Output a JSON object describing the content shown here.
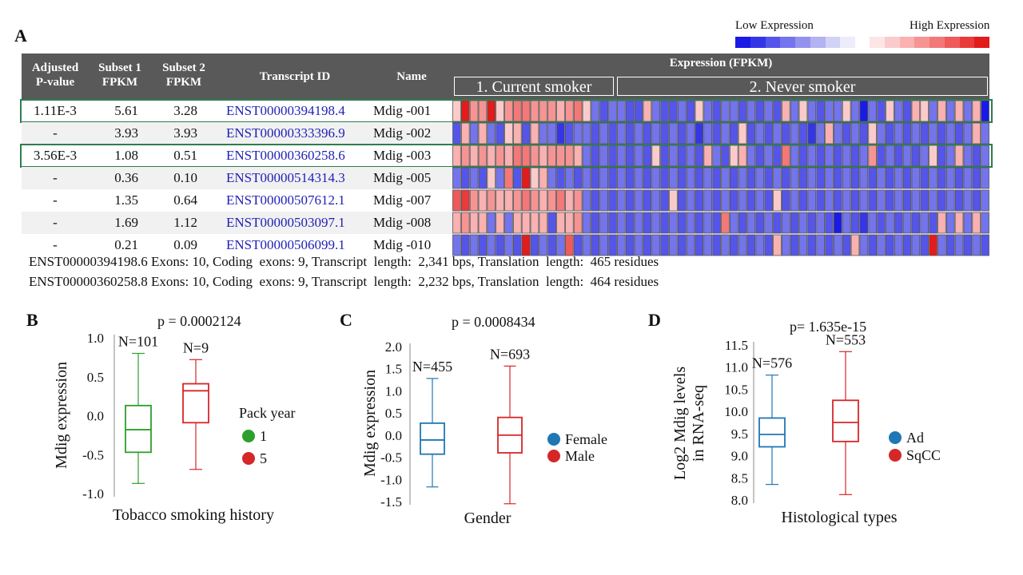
{
  "panel_labels": {
    "a": "A",
    "b": "B",
    "c": "C",
    "d": "D"
  },
  "legend": {
    "low_label": "Low Expression",
    "high_label": "High Expression",
    "low_colors": [
      "#1a1ae6",
      "#3535e8",
      "#5555ea",
      "#7474ec",
      "#9393ef",
      "#b3b3f2",
      "#d2d2f6",
      "#ececfb"
    ],
    "high_colors": [
      "#fde5e5",
      "#fbcbcb",
      "#f9b1b1",
      "#f69494",
      "#f37878",
      "#ef5a5a",
      "#ea3a3a",
      "#e21b1b"
    ]
  },
  "table": {
    "headers": {
      "pval": [
        "Adjusted",
        "P-value"
      ],
      "subset1": [
        "Subset 1",
        "FPKM"
      ],
      "subset2": [
        "Subset 2",
        "FPKM"
      ],
      "transcript": "Transcript ID",
      "name": "Name",
      "expression": "Expression (FPKM)",
      "group1": "1. Current smoker",
      "group2": "2. Never smoker"
    },
    "rows": [
      {
        "pval": "1.11E-3",
        "s1": "5.61",
        "s2": "3.28",
        "tid": "ENST00000394198.4",
        "name": "Mdig -001",
        "highlight": true,
        "heat": [
          1,
          7,
          3,
          3,
          7,
          1,
          3,
          4,
          4,
          3,
          3,
          3,
          2,
          3,
          4,
          1,
          -1,
          -2,
          -1,
          -1,
          -2,
          -2,
          2,
          -1,
          -2,
          -2,
          -1,
          -2,
          1,
          -1,
          -2,
          -1,
          -1,
          -2,
          -1,
          -2,
          -1,
          -2,
          2,
          -1,
          1,
          -1,
          -2,
          -1,
          -1,
          1,
          -1,
          -5,
          -1,
          -2,
          1,
          -1,
          -2,
          2,
          1,
          -1,
          2,
          -1,
          2,
          -1,
          2,
          -5
        ]
      },
      {
        "pval": "-",
        "s1": "3.93",
        "s2": "3.93",
        "tid": "ENST00000333396.9",
        "name": "Mdig -002",
        "highlight": false,
        "heat": [
          -2,
          2,
          -1,
          2,
          -1,
          -2,
          1,
          2,
          -2,
          2,
          -1,
          -1,
          -3,
          -2,
          -1,
          -1,
          -2,
          -1,
          -2,
          -1,
          -2,
          -1,
          -2,
          -1,
          -2,
          -1,
          -2,
          -1,
          -3,
          -1,
          -2,
          -1,
          -2,
          1,
          -2,
          -1,
          -2,
          -1,
          -2,
          -1,
          -2,
          -3,
          -1,
          2,
          -1,
          -2,
          -1,
          -2,
          1,
          -1,
          -2,
          -1,
          -2,
          -1,
          -2,
          -1,
          -2,
          -1,
          -2,
          -1,
          2,
          -1
        ]
      },
      {
        "pval": "3.56E-3",
        "s1": "1.08",
        "s2": "0.51",
        "tid": "ENST00000360258.6",
        "name": "Mdig -003",
        "highlight": true,
        "heat": [
          2,
          3,
          2,
          3,
          2,
          3,
          2,
          4,
          4,
          3,
          2,
          3,
          3,
          3,
          2,
          -1,
          -2,
          -1,
          -2,
          -1,
          -2,
          -1,
          -2,
          1,
          -2,
          -1,
          -2,
          -1,
          -2,
          2,
          -1,
          -2,
          1,
          2,
          -1,
          -2,
          -1,
          -2,
          4,
          -1,
          -2,
          -1,
          -2,
          -1,
          -2,
          -1,
          -2,
          -1,
          3,
          -2,
          -1,
          -2,
          -1,
          -2,
          -1,
          1,
          -2,
          -1,
          2,
          -1,
          -2,
          -1
        ]
      },
      {
        "pval": "-",
        "s1": "0.36",
        "s2": "0.10",
        "tid": "ENST00000514314.3",
        "name": "Mdig -005",
        "highlight": false,
        "heat": [
          -1,
          -2,
          -1,
          -2,
          1,
          -1,
          4,
          -2,
          7,
          1,
          2,
          -1,
          -2,
          -1,
          -2,
          -1,
          -2,
          -1,
          -2,
          -1,
          -2,
          -1,
          -2,
          -1,
          -2,
          -1,
          -2,
          -1,
          -2,
          -1,
          -2,
          -1,
          -2,
          -1,
          -2,
          -1,
          -2,
          -1,
          -2,
          -1,
          -2,
          -1,
          -2,
          -1,
          -2,
          -1,
          -2,
          -1,
          -2,
          -1,
          -2,
          -1,
          -2,
          -1,
          -2,
          -1,
          -2,
          -1,
          -2,
          -1,
          -2,
          -1
        ]
      },
      {
        "pval": "-",
        "s1": "1.35",
        "s2": "0.64",
        "tid": "ENST00000507612.1",
        "name": "Mdig -007",
        "highlight": false,
        "heat": [
          5,
          6,
          3,
          2,
          3,
          2,
          2,
          3,
          4,
          3,
          2,
          3,
          4,
          2,
          3,
          -1,
          -2,
          -1,
          -2,
          -1,
          -2,
          -1,
          -2,
          -1,
          -2,
          1,
          -2,
          -1,
          -2,
          -1,
          -2,
          -1,
          -2,
          -1,
          -2,
          -1,
          -2,
          1,
          -2,
          -1,
          -2,
          -1,
          -2,
          -1,
          -2,
          -1,
          -2,
          -1,
          -2,
          -1,
          -2,
          -1,
          -2,
          -1,
          -2,
          -1,
          -2,
          -1,
          -2,
          -1,
          -2,
          -1
        ]
      },
      {
        "pval": "-",
        "s1": "1.69",
        "s2": "1.12",
        "tid": "ENST00000503097.1",
        "name": "Mdig -008",
        "highlight": false,
        "heat": [
          2,
          3,
          2,
          2,
          -1,
          2,
          -1,
          2,
          2,
          2,
          2,
          -2,
          2,
          2,
          3,
          -1,
          -2,
          -1,
          -2,
          -1,
          -2,
          -1,
          -2,
          -1,
          -2,
          -1,
          -2,
          -1,
          -2,
          -1,
          -2,
          4,
          -1,
          -2,
          -1,
          -2,
          -1,
          -2,
          -1,
          -2,
          -1,
          -2,
          -1,
          -2,
          -4,
          -1,
          -2,
          -3,
          -1,
          -2,
          -1,
          -2,
          -1,
          -2,
          -1,
          -2,
          2,
          -1,
          2,
          -1,
          2,
          -1
        ]
      },
      {
        "pval": "-",
        "s1": "0.21",
        "s2": "0.09",
        "tid": "ENST00000506099.1",
        "name": "Mdig -010",
        "highlight": false,
        "heat": [
          -1,
          -2,
          -1,
          -2,
          -1,
          -2,
          -1,
          -2,
          7,
          -2,
          -1,
          -2,
          -1,
          5,
          -2,
          -1,
          -2,
          -1,
          -2,
          -1,
          -2,
          -1,
          -2,
          -1,
          -2,
          -1,
          -2,
          -1,
          -2,
          -1,
          -2,
          -1,
          -2,
          -1,
          -2,
          -1,
          -2,
          2,
          -1,
          -2,
          -1,
          -2,
          -1,
          -2,
          -1,
          -2,
          2,
          -1,
          -2,
          -1,
          -2,
          -1,
          -2,
          -1,
          -2,
          7,
          -1,
          -2,
          -1,
          -2,
          -1,
          -2
        ]
      }
    ],
    "group1_count": 15
  },
  "info_lines": [
    "ENST00000394198.6 Exons: 10, Coding  exons: 9, Transcript  length:  2,341 bps, Translation  length:  465 residues",
    "ENST00000360258.8 Exons: 10, Coding  exons: 9, Transcript  length:  2,232 bps, Translation  length:  464 residues"
  ],
  "chart_data": [
    {
      "type": "box",
      "panel": "B",
      "pvalue": "p = 0.0002124",
      "xlabel": "Tobacco smoking history",
      "ylabel": "Mdig expression",
      "ylim": [
        -1.0,
        1.0
      ],
      "yticks": [
        "1.0",
        "0.5",
        "0.0",
        "-0.5",
        "-1.0"
      ],
      "ytick_values": [
        1.0,
        0.5,
        0.0,
        -0.5,
        -1.0
      ],
      "legend_title": "Pack year",
      "legend_position": "right",
      "groups": [
        {
          "name": "1",
          "n_label": "N=101",
          "color": "#2ca02c",
          "whisker_low": -0.87,
          "q1": -0.47,
          "median": -0.18,
          "q3": 0.13,
          "whisker_high": 0.8
        },
        {
          "name": "5",
          "n_label": "N=9",
          "color": "#d62728",
          "whisker_low": -0.69,
          "q1": -0.09,
          "median": 0.32,
          "q3": 0.41,
          "whisker_high": 0.72
        }
      ]
    },
    {
      "type": "box",
      "panel": "C",
      "pvalue": "p = 0.0008434",
      "xlabel": "Gender",
      "ylabel": "Mdig expression",
      "ylim": [
        -1.5,
        2.0
      ],
      "yticks": [
        "2.0",
        "1.5",
        "1.0",
        "0.5",
        "0.0",
        "-0.5",
        "-1.0",
        "-1.5"
      ],
      "ytick_values": [
        2.0,
        1.5,
        1.0,
        0.5,
        0.0,
        -0.5,
        -1.0,
        -1.5
      ],
      "legend_position": "right",
      "groups": [
        {
          "name": "Female",
          "n_label": "N=455",
          "color": "#1f77b4",
          "whisker_low": -1.17,
          "q1": -0.43,
          "median": -0.11,
          "q3": 0.27,
          "whisker_high": 1.28
        },
        {
          "name": "Male",
          "n_label": "N=693",
          "color": "#d62728",
          "whisker_low": -1.55,
          "q1": -0.4,
          "median": 0.0,
          "q3": 0.4,
          "whisker_high": 1.56
        }
      ]
    },
    {
      "type": "box",
      "panel": "D",
      "pvalue": "p= 1.635e-15",
      "xlabel": "Histological types",
      "ylabel": "Log2 Mdig levels",
      "ylabel2": "in RNA-seq",
      "ylim": [
        8.0,
        11.5
      ],
      "yticks": [
        "11.5",
        "11.0",
        "10.5",
        "10.0",
        "9.5",
        "9.0",
        "8.5",
        "8.0"
      ],
      "ytick_values": [
        11.5,
        11.0,
        10.5,
        10.0,
        9.5,
        9.0,
        8.5,
        8.0
      ],
      "legend_position": "right",
      "groups": [
        {
          "name": "Ad",
          "n_label": "N=576",
          "color": "#1f77b4",
          "whisker_low": 8.35,
          "q1": 9.2,
          "median": 9.48,
          "q3": 9.85,
          "whisker_high": 10.82
        },
        {
          "name": "SqCC",
          "n_label": "N=553",
          "color": "#d62728",
          "whisker_low": 8.12,
          "q1": 9.32,
          "median": 9.75,
          "q3": 10.25,
          "whisker_high": 11.35
        }
      ]
    }
  ]
}
